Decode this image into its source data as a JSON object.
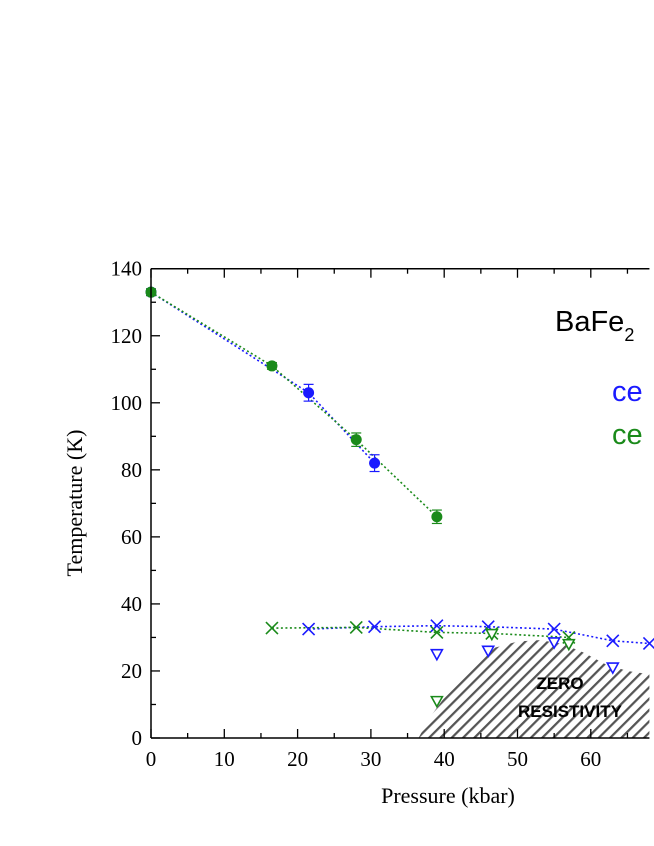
{
  "chart_data": {
    "type": "scatter",
    "xlabel": "Pressure (kbar)",
    "ylabel": "Temperature (K)",
    "xlim": [
      0,
      68
    ],
    "ylim": [
      0,
      140
    ],
    "x_ticks": [
      "0",
      "10",
      "20",
      "30",
      "40",
      "50",
      "60"
    ],
    "y_ticks": [
      "0",
      "20",
      "40",
      "60",
      "80",
      "100",
      "120",
      "140"
    ],
    "grid": false,
    "colors": {
      "blue": "#1a1aff",
      "green": "#1a8a1a",
      "hatch": "#555555"
    },
    "legend": {
      "compound": "BaFe",
      "compound_sub": "2",
      "entries": [
        {
          "label": "ce",
          "color": "#1a1aff"
        },
        {
          "label": "ce",
          "color": "#1a8a1a"
        }
      ]
    },
    "series": [
      {
        "color": "#1a1aff",
        "marker": "circle",
        "line": "dotted",
        "points": [
          {
            "x": 0,
            "y": 133,
            "err": 1
          },
          {
            "x": 21.5,
            "y": 103,
            "err": 2.5
          },
          {
            "x": 30.5,
            "y": 82,
            "err": 2.5
          }
        ]
      },
      {
        "color": "#1a8a1a",
        "marker": "circle",
        "line": "dotted",
        "points": [
          {
            "x": 0,
            "y": 133,
            "err": 1
          },
          {
            "x": 16.5,
            "y": 111,
            "err": 1
          },
          {
            "x": 28,
            "y": 89,
            "err": 2
          },
          {
            "x": 39,
            "y": 66,
            "err": 2
          }
        ]
      },
      {
        "color": "#1a1aff",
        "marker": "x",
        "line": "dotted",
        "points": [
          {
            "x": 21.5,
            "y": 32.5
          },
          {
            "x": 30.5,
            "y": 33.2
          },
          {
            "x": 39,
            "y": 33.5
          },
          {
            "x": 46,
            "y": 33.2
          },
          {
            "x": 55,
            "y": 32.5
          },
          {
            "x": 63,
            "y": 29
          },
          {
            "x": 68,
            "y": 28.2
          }
        ]
      },
      {
        "color": "#1a8a1a",
        "marker": "x",
        "line": "dotted",
        "points": [
          {
            "x": 16.5,
            "y": 32.8
          },
          {
            "x": 28,
            "y": 33
          },
          {
            "x": 39,
            "y": 31.5
          },
          {
            "x": 46.5,
            "y": 31.2
          },
          {
            "x": 57,
            "y": 30
          }
        ]
      },
      {
        "color": "#1a1aff",
        "marker": "triangle-down",
        "line": "none",
        "points": [
          {
            "x": 39,
            "y": 25
          },
          {
            "x": 46,
            "y": 26
          },
          {
            "x": 55,
            "y": 28.5
          },
          {
            "x": 63,
            "y": 21
          }
        ]
      },
      {
        "color": "#1a8a1a",
        "marker": "triangle-down",
        "line": "none",
        "points": [
          {
            "x": 39,
            "y": 11
          },
          {
            "x": 46.5,
            "y": 31
          },
          {
            "x": 57,
            "y": 28
          }
        ]
      }
    ],
    "region": {
      "label_line1": "ZERO",
      "label_line2": "RESISTIVITY",
      "boundary": [
        {
          "x": 36.5,
          "y": 0
        },
        {
          "x": 38,
          "y": 6
        },
        {
          "x": 41,
          "y": 15
        },
        {
          "x": 44,
          "y": 22
        },
        {
          "x": 47,
          "y": 27
        },
        {
          "x": 50,
          "y": 28.8
        },
        {
          "x": 53,
          "y": 29.2
        },
        {
          "x": 56,
          "y": 28.2
        },
        {
          "x": 59,
          "y": 25.5
        },
        {
          "x": 62,
          "y": 22
        },
        {
          "x": 65,
          "y": 20
        },
        {
          "x": 68,
          "y": 19
        },
        {
          "x": 68,
          "y": 0
        }
      ]
    }
  }
}
